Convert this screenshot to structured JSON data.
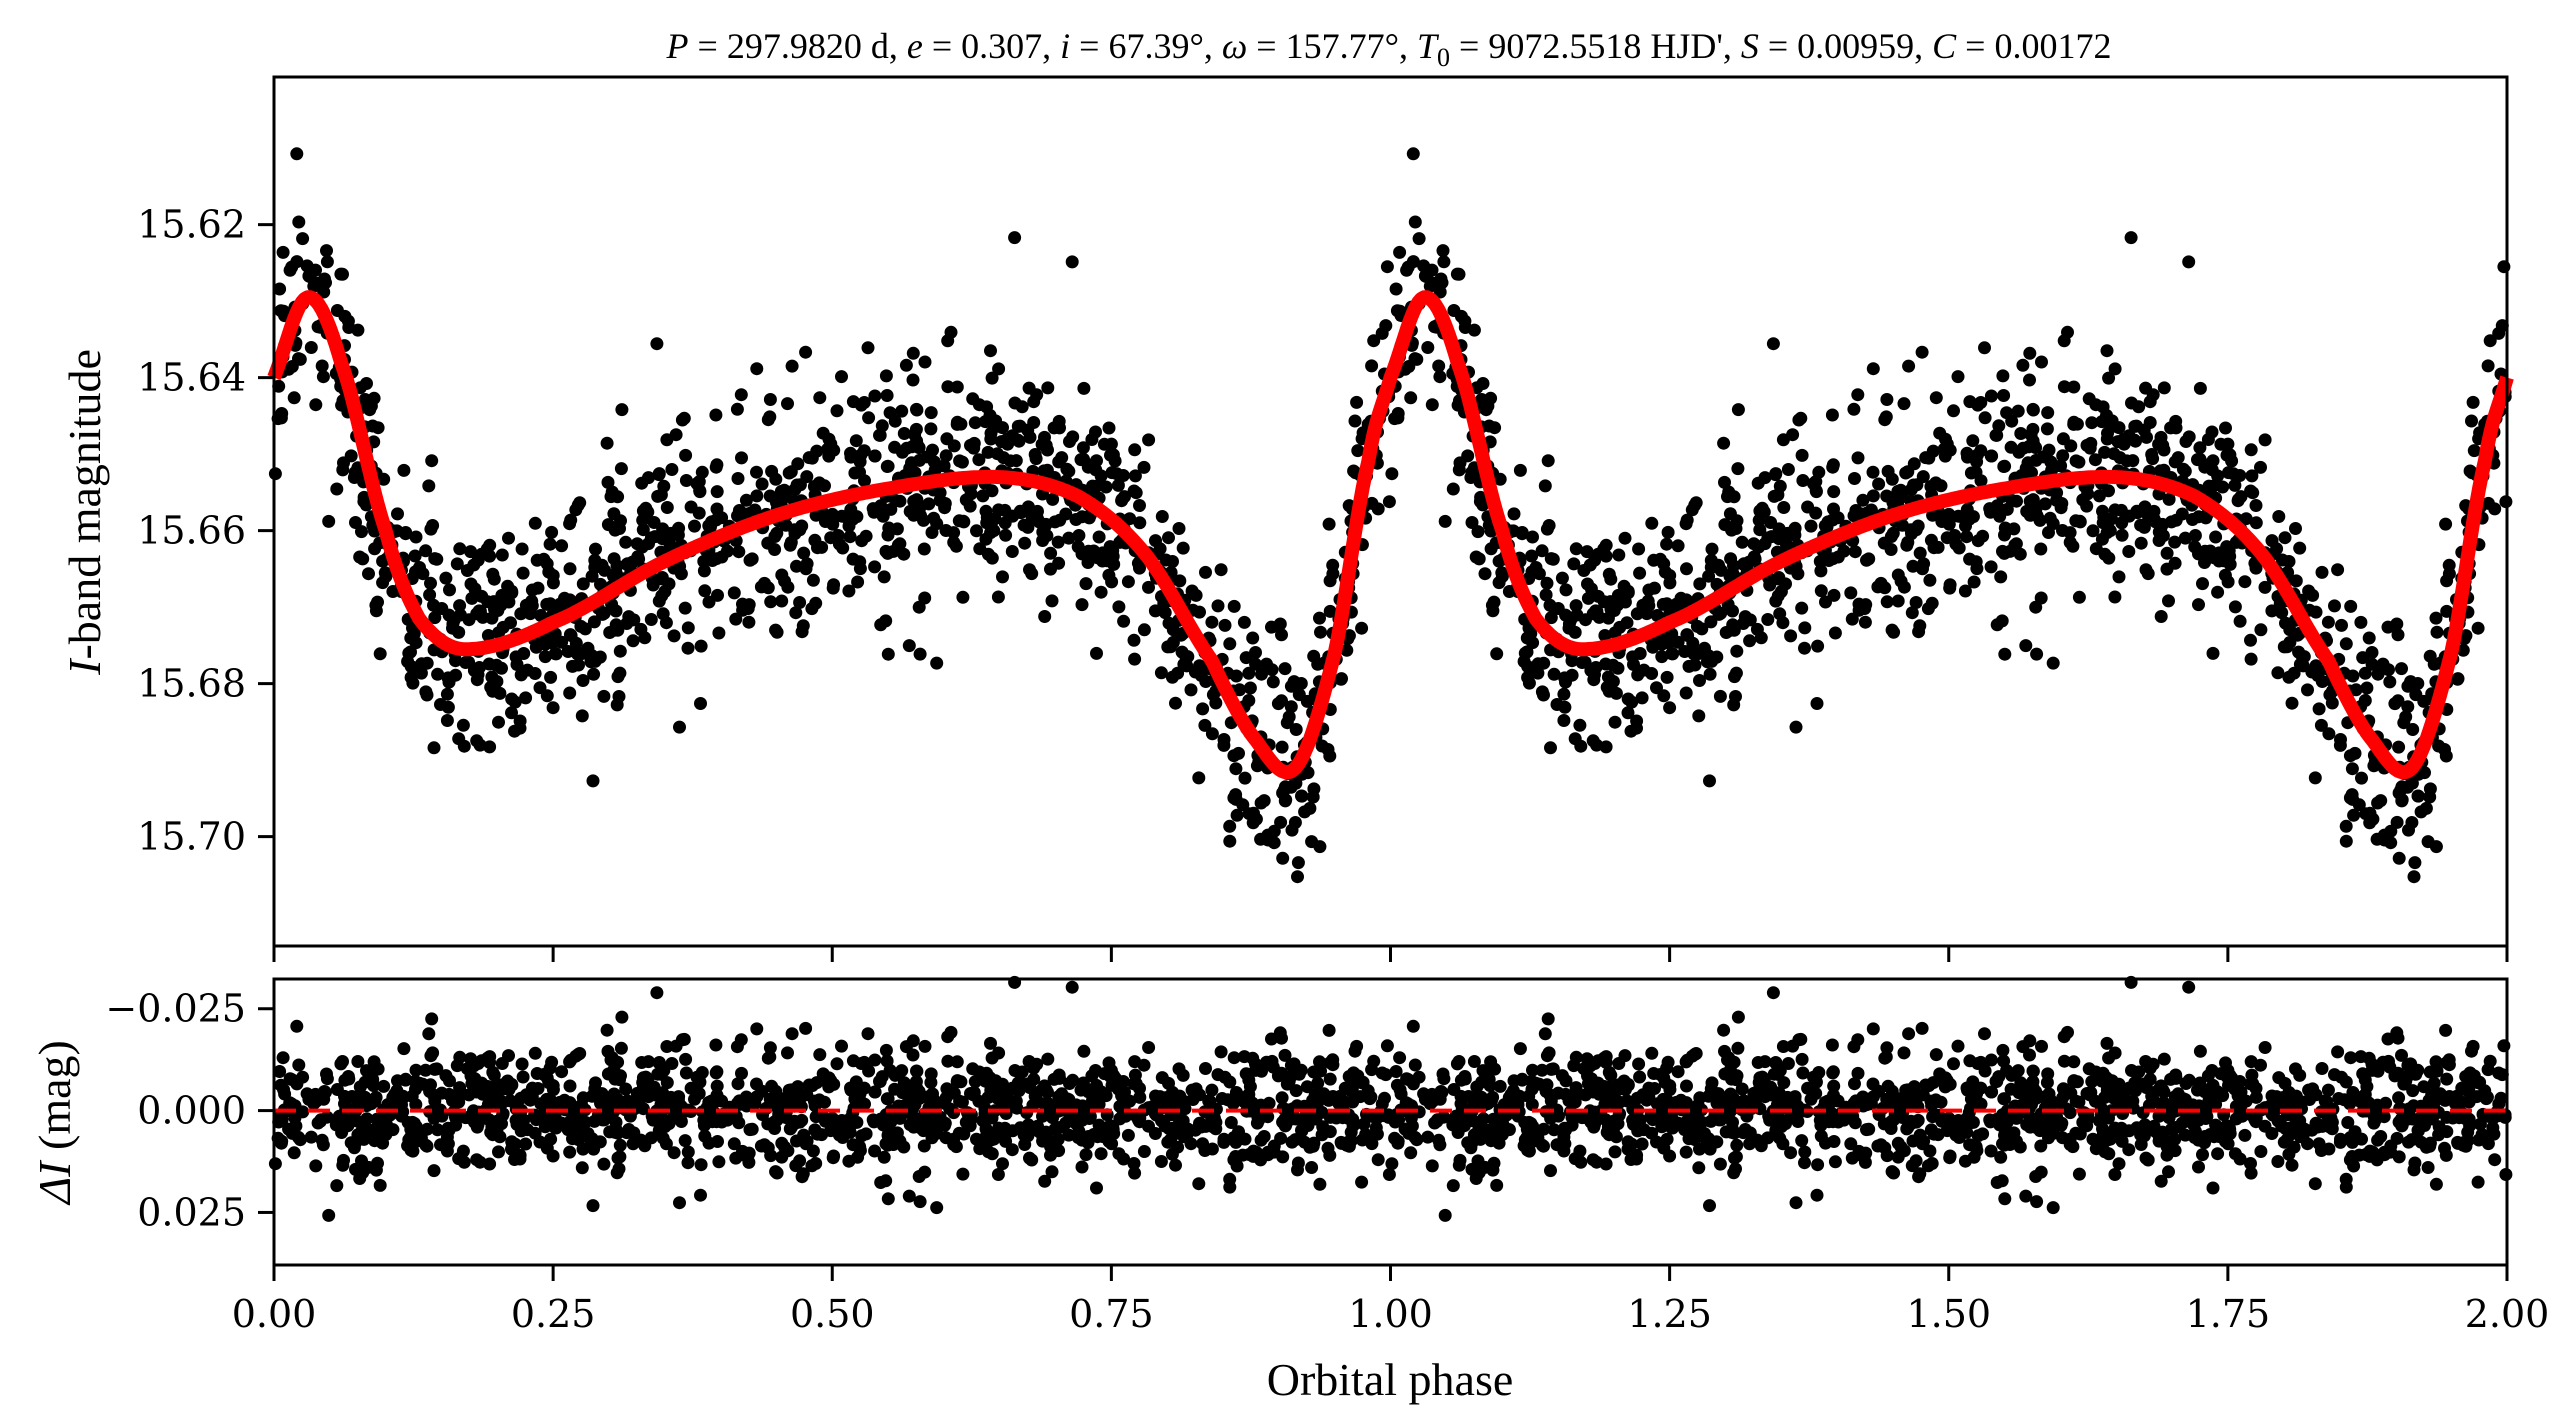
{
  "chart_data": {
    "type": "scatter",
    "title_params": [
      {
        "sym": "P",
        "sub": "",
        "val": "297.9820 d"
      },
      {
        "sym": "e",
        "sub": "",
        "val": "0.307"
      },
      {
        "sym": "i",
        "sub": "",
        "val": "67.39°"
      },
      {
        "sym": "ω",
        "sub": "",
        "val": "157.77°"
      },
      {
        "sym": "T",
        "sub": "0",
        "val": "9072.5518 HJD'"
      },
      {
        "sym": "S",
        "sub": "",
        "val": "0.00959"
      },
      {
        "sym": "C",
        "sub": "",
        "val": "0.00172"
      }
    ],
    "xlabel": "Orbital phase",
    "xlim": [
      0,
      2
    ],
    "xticks": [
      "0.00",
      "0.25",
      "0.50",
      "0.75",
      "1.00",
      "1.25",
      "1.50",
      "1.75",
      "2.00"
    ],
    "top_panel": {
      "ylabel_italic": "I",
      "ylabel_rest": "-band magnitude",
      "ylim": [
        15.7143,
        15.6007
      ],
      "yticks": [
        "15.62",
        "15.64",
        "15.66",
        "15.68",
        "15.70"
      ],
      "model_color": "#ff0000",
      "point_color": "#000000",
      "model_phase": [
        0.0,
        0.03,
        0.06,
        0.1,
        0.13,
        0.17,
        0.25,
        0.35,
        0.45,
        0.55,
        0.65,
        0.72,
        0.78,
        0.84,
        0.88,
        0.915,
        0.95,
        0.98,
        1.0
      ],
      "model_mag": [
        15.64,
        15.6295,
        15.638,
        15.66,
        15.6715,
        15.6755,
        15.672,
        15.664,
        15.658,
        15.6545,
        15.653,
        15.6555,
        15.663,
        15.677,
        15.6875,
        15.691,
        15.676,
        15.651,
        15.64
      ]
    },
    "bottom_panel": {
      "ylabel_sym": "ΔI",
      "ylabel_rest": " (mag)",
      "ylim": [
        0.0379,
        -0.0323
      ],
      "yticks": [
        "−0.025",
        "0.000",
        "0.025"
      ],
      "ytick_values": [
        -0.025,
        0,
        0.025
      ],
      "zero_line_color": "#ff0000",
      "residual_sigma": 0.0075,
      "n_points_per_cycle": 1300
    }
  }
}
